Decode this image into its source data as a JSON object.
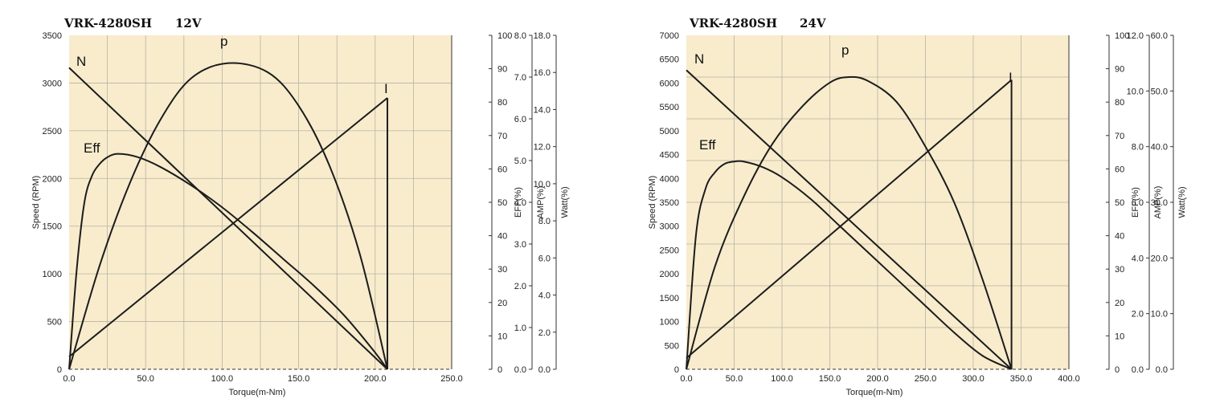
{
  "chart_data": [
    {
      "type": "line",
      "title_model": "VRK-4280SH",
      "title_voltage": "12V",
      "xlabel": "Torque(m-Nm)",
      "xlim": [
        0,
        250
      ],
      "x_ticks": [
        "0.0",
        "50.0",
        "100.0",
        "150.0",
        "200.0",
        "250.0"
      ],
      "axes": {
        "speed": {
          "label": "Speed (RPM)",
          "lim": [
            0,
            3500
          ],
          "ticks": [
            "0",
            "500",
            "1000",
            "1500",
            "2000",
            "2500",
            "3000",
            "3500"
          ]
        },
        "eff": {
          "label": "EFF(%)",
          "lim": [
            0,
            100
          ],
          "ticks": [
            "0",
            "10",
            "20",
            "30",
            "40",
            "50",
            "60",
            "70",
            "80",
            "90",
            "100"
          ]
        },
        "amp": {
          "label": "AMP(%)",
          "lim": [
            0,
            8
          ],
          "ticks": [
            "0.0",
            "1.0",
            "2.0",
            "3.0",
            "4.0",
            "5.0",
            "6.0",
            "7.0",
            "8.0"
          ]
        },
        "watt": {
          "label": "Watt(%)",
          "lim": [
            0,
            18
          ],
          "ticks": [
            "0.0",
            "2.0",
            "4.0",
            "6.0",
            "8.0",
            "10.0",
            "12.0",
            "14.0",
            "16.0",
            "18.0"
          ]
        }
      },
      "series": [
        {
          "name": "N",
          "axis": "speed",
          "x": [
            0,
            208
          ],
          "y": [
            3160,
            0
          ]
        },
        {
          "name": "I",
          "axis": "amp",
          "x": [
            0,
            208
          ],
          "y": [
            0.3,
            6.5
          ]
        },
        {
          "name": "p",
          "axis": "watt",
          "x": [
            0,
            20,
            40,
            60,
            80,
            104,
            130,
            150,
            170,
            190,
            208
          ],
          "y": [
            0,
            5.6,
            10.1,
            13.5,
            15.7,
            16.5,
            16.0,
            14.2,
            11.0,
            6.2,
            0
          ]
        },
        {
          "name": "Eff",
          "axis": "eff",
          "x": [
            0,
            5,
            10,
            15,
            20,
            25,
            32,
            45,
            60,
            80,
            100,
            120,
            140,
            160,
            180,
            200,
            208
          ],
          "y": [
            0,
            30,
            50,
            58,
            61.5,
            63.5,
            64.5,
            63.5,
            60.5,
            55,
            48.5,
            41,
            33,
            25,
            16,
            5,
            0
          ]
        }
      ],
      "grid": true
    },
    {
      "type": "line",
      "title_model": "VRK-4280SH",
      "title_voltage": "24V",
      "xlabel": "Torque(m-Nm)",
      "xlim": [
        0,
        400
      ],
      "x_ticks": [
        "0.0",
        "50.0",
        "100.0",
        "150.0",
        "200.0",
        "250.0",
        "300.0",
        "350.0",
        "400.0"
      ],
      "axes": {
        "speed": {
          "label": "Speed (RPM)",
          "lim": [
            0,
            7000
          ],
          "ticks": [
            "0",
            "500",
            "1000",
            "1500",
            "2000",
            "2500",
            "3000",
            "3500",
            "4000",
            "4500",
            "5000",
            "5500",
            "6000",
            "6500",
            "7000"
          ]
        },
        "eff": {
          "label": "EFF(%)",
          "lim": [
            0,
            100
          ],
          "ticks": [
            "0",
            "10",
            "20",
            "30",
            "40",
            "50",
            "60",
            "70",
            "80",
            "90",
            "100"
          ]
        },
        "amp": {
          "label": "AMP(%)",
          "lim": [
            0,
            12
          ],
          "ticks": [
            "0.0",
            "2.0",
            "4.0",
            "6.0",
            "8.0",
            "10.0",
            "12.0"
          ]
        },
        "watt": {
          "label": "Watt(%)",
          "lim": [
            0,
            60
          ],
          "ticks": [
            "0.0",
            "10.0",
            "20.0",
            "30.0",
            "40.0",
            "50.0",
            "60.0"
          ]
        }
      },
      "series": [
        {
          "name": "N",
          "axis": "speed",
          "x": [
            0,
            340
          ],
          "y": [
            6270,
            0
          ]
        },
        {
          "name": "I",
          "axis": "amp",
          "x": [
            0,
            340
          ],
          "y": [
            0.4,
            10.4
          ]
        },
        {
          "name": "p",
          "axis": "watt",
          "x": [
            0,
            30,
            60,
            90,
            120,
            150,
            170,
            190,
            220,
            250,
            280,
            310,
            340
          ],
          "y": [
            0,
            18.5,
            31,
            40.5,
            47,
            51.5,
            52.5,
            51.8,
            48,
            40,
            30,
            16,
            0
          ]
        },
        {
          "name": "Eff",
          "axis": "eff",
          "x": [
            0,
            10,
            20,
            30,
            40,
            50,
            60,
            80,
            100,
            130,
            160,
            190,
            220,
            250,
            280,
            310,
            340
          ],
          "y": [
            0,
            40,
            54,
            59,
            61.5,
            62.2,
            62.2,
            60.5,
            57.5,
            51,
            43,
            35,
            27,
            19,
            11,
            4,
            0
          ]
        }
      ],
      "grid": true
    }
  ]
}
